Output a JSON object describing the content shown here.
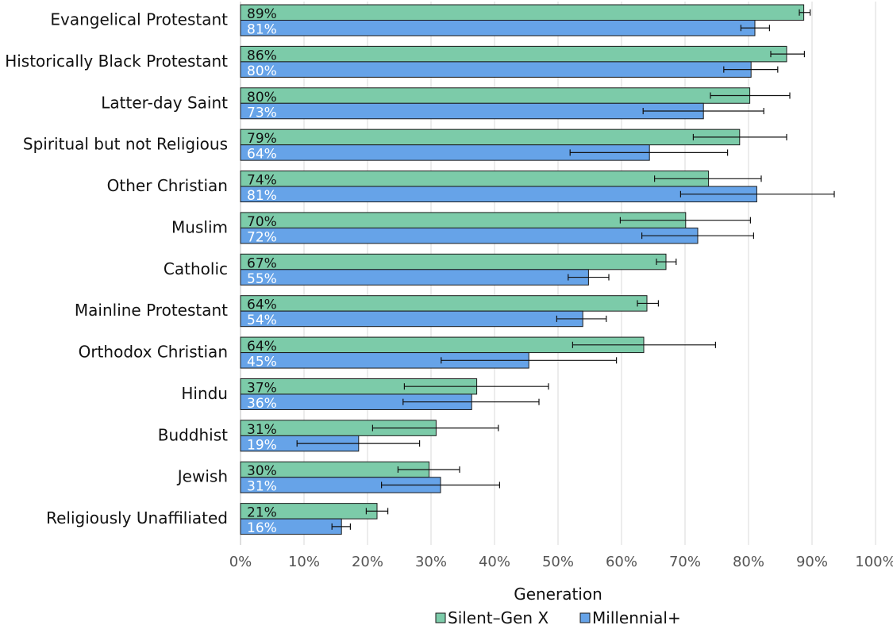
{
  "chart_data": {
    "type": "bar",
    "orientation": "horizontal",
    "categories": [
      "Evangelical Protestant",
      "Historically Black Protestant",
      "Latter-day Saint",
      "Spiritual but not Religious",
      "Other Christian",
      "Muslim",
      "Catholic",
      "Mainline Protestant",
      "Orthodox Christian",
      "Hindu",
      "Buddhist",
      "Jewish",
      "Religiously Unaffiliated"
    ],
    "series": [
      {
        "name": "Silent–Gen X",
        "color": "#7ccba9",
        "label_color": "#111111",
        "values": [
          88.7,
          86.0,
          80.2,
          78.6,
          73.7,
          70.1,
          67.0,
          64.0,
          63.5,
          37.2,
          30.8,
          29.7,
          21.5
        ],
        "labels": [
          "89%",
          "86%",
          "80%",
          "79%",
          "74%",
          "70%",
          "67%",
          "64%",
          "64%",
          "37%",
          "31%",
          "30%",
          "21%"
        ],
        "error_bars": [
          [
            88.0,
            89.7
          ],
          [
            83.5,
            88.8
          ],
          [
            74.0,
            86.5
          ],
          [
            71.3,
            86.0
          ],
          [
            65.2,
            82.0
          ],
          [
            59.8,
            80.3
          ],
          [
            65.5,
            68.6
          ],
          [
            62.5,
            65.8
          ],
          [
            52.3,
            74.8
          ],
          [
            25.8,
            48.5
          ],
          [
            20.8,
            40.6
          ],
          [
            24.8,
            34.5
          ],
          [
            19.8,
            23.2
          ]
        ]
      },
      {
        "name": "Millennial+",
        "color": "#66a3e8",
        "label_color": "#ffffff",
        "values": [
          81.0,
          80.4,
          72.9,
          64.4,
          81.3,
          72.0,
          54.8,
          53.9,
          45.4,
          36.4,
          18.6,
          31.5,
          15.9
        ],
        "labels": [
          "81%",
          "80%",
          "73%",
          "64%",
          "81%",
          "72%",
          "55%",
          "54%",
          "45%",
          "36%",
          "19%",
          "31%",
          "16%"
        ],
        "error_bars": [
          [
            78.8,
            83.3
          ],
          [
            76.1,
            84.6
          ],
          [
            63.4,
            82.4
          ],
          [
            51.9,
            76.7
          ],
          [
            69.3,
            93.5
          ],
          [
            63.2,
            80.8
          ],
          [
            51.6,
            58.0
          ],
          [
            49.8,
            57.6
          ],
          [
            31.6,
            59.2
          ],
          [
            25.6,
            47.0
          ],
          [
            8.9,
            28.2
          ],
          [
            22.2,
            40.8
          ],
          [
            14.4,
            17.3
          ]
        ]
      }
    ],
    "xlim": [
      0,
      100
    ],
    "x_ticks": [
      "0%",
      "10%",
      "20%",
      "30%",
      "40%",
      "50%",
      "60%",
      "70%",
      "80%",
      "90%",
      "100%"
    ],
    "xlabel": "Generation",
    "ylabel": "",
    "title": "",
    "grid": "vertical",
    "legend_position": "bottom"
  }
}
